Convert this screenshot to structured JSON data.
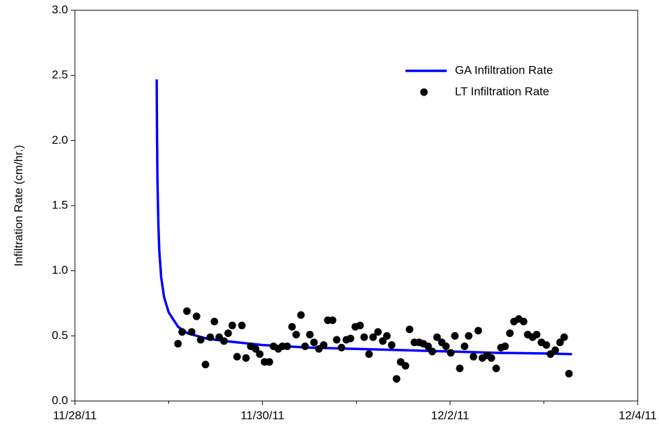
{
  "chart_data": {
    "type": "scatter",
    "ylabel": "Infiltration Rate (cm/hr.)",
    "xlim": [
      0,
      6
    ],
    "xticks": [
      {
        "value": 0,
        "label": "11/28/11"
      },
      {
        "value": 2,
        "label": "11/30/11"
      },
      {
        "value": 4,
        "label": "12/2/11"
      },
      {
        "value": 6,
        "label": "12/4/11"
      }
    ],
    "xminorticks": [
      1,
      3,
      5
    ],
    "ylim": [
      0,
      3
    ],
    "yticks": [
      {
        "value": 0,
        "label": "0.0"
      },
      0.5,
      {
        "value": 1,
        "label": "1.0"
      },
      1.5,
      {
        "value": 2,
        "label": "2.0"
      },
      2.5,
      {
        "value": 3,
        "label": "3.0"
      }
    ],
    "legend": "upper right",
    "series": [
      {
        "name": "GA Infiltration Rate",
        "type": "line",
        "color": "#0000ff",
        "x": [
          0.872,
          0.875,
          0.88,
          0.89,
          0.9,
          0.92,
          0.95,
          1.0,
          1.1,
          1.2,
          1.4,
          1.6,
          2.0,
          2.5,
          3.0,
          3.5,
          4.0,
          4.5,
          5.0,
          5.3
        ],
        "values": [
          2.47,
          2.1,
          1.7,
          1.35,
          1.15,
          0.95,
          0.8,
          0.68,
          0.57,
          0.52,
          0.48,
          0.46,
          0.43,
          0.41,
          0.4,
          0.39,
          0.38,
          0.37,
          0.365,
          0.36
        ]
      },
      {
        "name": "LT Infiltration Rate",
        "type": "scatter",
        "color": "#000000",
        "x": [
          1.099,
          1.143,
          1.194,
          1.245,
          1.297,
          1.341,
          1.392,
          1.443,
          1.487,
          1.538,
          1.59,
          1.634,
          1.678,
          1.729,
          1.78,
          1.824,
          1.875,
          1.927,
          1.971,
          2.022,
          2.073,
          2.117,
          2.168,
          2.212,
          2.264,
          2.315,
          2.359,
          2.41,
          2.454,
          2.505,
          2.549,
          2.601,
          2.652,
          2.696,
          2.747,
          2.791,
          2.842,
          2.894,
          2.938,
          2.989,
          3.04,
          3.084,
          3.136,
          3.179,
          3.231,
          3.282,
          3.326,
          3.377,
          3.429,
          3.473,
          3.524,
          3.568,
          3.619,
          3.67,
          3.714,
          3.766,
          3.81,
          3.861,
          3.912,
          3.956,
          4.007,
          4.051,
          4.103,
          4.154,
          4.198,
          4.249,
          4.3,
          4.344,
          4.396,
          4.44,
          4.491,
          4.542,
          4.586,
          4.637,
          4.681,
          4.733,
          4.784,
          4.828,
          4.879,
          4.923,
          4.974,
          5.026,
          5.07,
          5.121,
          5.172,
          5.216,
          5.267
        ],
        "values": [
          0.44,
          0.53,
          0.69,
          0.53,
          0.65,
          0.47,
          0.28,
          0.49,
          0.61,
          0.49,
          0.46,
          0.52,
          0.58,
          0.34,
          0.58,
          0.33,
          0.42,
          0.4,
          0.36,
          0.3,
          0.3,
          0.42,
          0.4,
          0.42,
          0.42,
          0.57,
          0.51,
          0.66,
          0.42,
          0.51,
          0.45,
          0.4,
          0.43,
          0.62,
          0.62,
          0.47,
          0.41,
          0.47,
          0.48,
          0.57,
          0.58,
          0.49,
          0.36,
          0.49,
          0.53,
          0.46,
          0.5,
          0.43,
          0.17,
          0.3,
          0.27,
          0.55,
          0.45,
          0.45,
          0.44,
          0.42,
          0.38,
          0.49,
          0.45,
          0.42,
          0.37,
          0.5,
          0.25,
          0.42,
          0.5,
          0.34,
          0.54,
          0.33,
          0.35,
          0.33,
          0.25,
          0.41,
          0.42,
          0.52,
          0.61,
          0.63,
          0.61,
          0.51,
          0.49,
          0.51,
          0.45,
          0.43,
          0.36,
          0.39,
          0.45,
          0.49,
          0.21
        ]
      }
    ]
  }
}
